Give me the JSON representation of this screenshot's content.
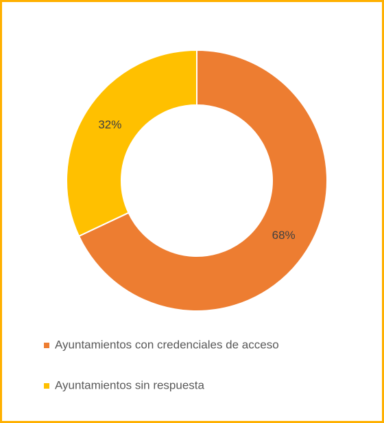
{
  "chart_data": {
    "type": "pie",
    "categories": [
      "Ayuntamientos con credenciales de acceso",
      "Ayuntamientos sin respuesta"
    ],
    "values": [
      68,
      32
    ],
    "value_labels": [
      "68%",
      "32%"
    ],
    "colors": [
      "#ed7d31",
      "#ffc000"
    ],
    "legend": "bottom"
  }
}
